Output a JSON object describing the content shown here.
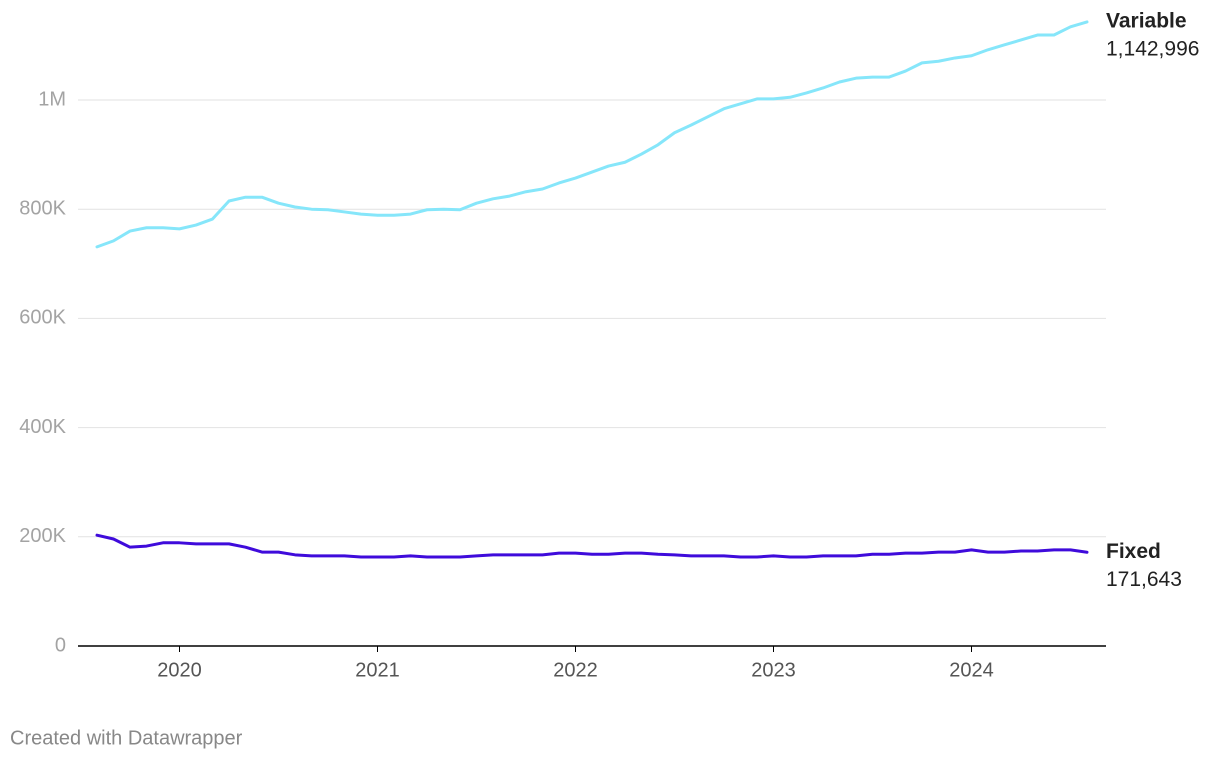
{
  "chart_data": {
    "type": "line",
    "credit": "Created with Datawrapper",
    "x": [
      "2019-08",
      "2019-09",
      "2019-10",
      "2019-11",
      "2019-12",
      "2020-01",
      "2020-02",
      "2020-03",
      "2020-04",
      "2020-05",
      "2020-06",
      "2020-07",
      "2020-08",
      "2020-09",
      "2020-10",
      "2020-11",
      "2020-12",
      "2021-01",
      "2021-02",
      "2021-03",
      "2021-04",
      "2021-05",
      "2021-06",
      "2021-07",
      "2021-08",
      "2021-09",
      "2021-10",
      "2021-11",
      "2021-12",
      "2022-01",
      "2022-02",
      "2022-03",
      "2022-04",
      "2022-05",
      "2022-06",
      "2022-07",
      "2022-08",
      "2022-09",
      "2022-10",
      "2022-11",
      "2022-12",
      "2023-01",
      "2023-02",
      "2023-03",
      "2023-04",
      "2023-05",
      "2023-06",
      "2023-07",
      "2023-08",
      "2023-09",
      "2023-10",
      "2023-11",
      "2023-12",
      "2024-01",
      "2024-02",
      "2024-03",
      "2024-04",
      "2024-05",
      "2024-06",
      "2024-07",
      "2024-08"
    ],
    "series": [
      {
        "name": "Variable",
        "color": "#86e6fa",
        "values": [
          731000,
          742000,
          760000,
          766000,
          766000,
          764000,
          771000,
          782000,
          815000,
          822000,
          822000,
          811000,
          804000,
          800000,
          799000,
          795000,
          791000,
          789000,
          789000,
          791000,
          799000,
          800000,
          799000,
          811000,
          819000,
          824000,
          832000,
          837000,
          848000,
          857000,
          868000,
          879000,
          886000,
          901000,
          918000,
          940000,
          954000,
          969000,
          984000,
          993000,
          1002000,
          1002000,
          1005000,
          1013000,
          1022000,
          1033000,
          1040000,
          1042000,
          1042000,
          1053000,
          1068000,
          1071000,
          1077000,
          1081000,
          1092000,
          1101000,
          1110000,
          1119000,
          1119000,
          1134000,
          1142996
        ],
        "value_labels": [
          null,
          null,
          null,
          null,
          null,
          null,
          null,
          null,
          null,
          null,
          null,
          null,
          null,
          null,
          null,
          null,
          null,
          null,
          null,
          null,
          null,
          null,
          null,
          null,
          null,
          null,
          null,
          null,
          null,
          null,
          null,
          null,
          null,
          null,
          null,
          null,
          null,
          null,
          null,
          null,
          null,
          null,
          null,
          null,
          null,
          null,
          null,
          null,
          null,
          null,
          null,
          null,
          null,
          null,
          null,
          null,
          null,
          null,
          null,
          null,
          "1,142,996"
        ]
      },
      {
        "name": "Fixed",
        "color": "#3f0bdb",
        "values": [
          203000,
          196000,
          181000,
          183000,
          189000,
          189000,
          187000,
          187000,
          187000,
          181000,
          172000,
          172000,
          167000,
          165000,
          165000,
          165000,
          163000,
          163000,
          163000,
          165000,
          163000,
          163000,
          163000,
          165000,
          167000,
          167000,
          167000,
          167000,
          170000,
          170000,
          168000,
          168000,
          170000,
          170000,
          168000,
          167000,
          165000,
          165000,
          165000,
          163000,
          163000,
          165000,
          163000,
          163000,
          165000,
          165000,
          165000,
          168000,
          168000,
          170000,
          170000,
          172000,
          172000,
          176000,
          172000,
          172000,
          174000,
          174000,
          176000,
          176000,
          171643
        ],
        "value_labels": [
          null,
          null,
          null,
          null,
          null,
          null,
          null,
          null,
          null,
          null,
          null,
          null,
          null,
          null,
          null,
          null,
          null,
          null,
          null,
          null,
          null,
          null,
          null,
          null,
          null,
          null,
          null,
          null,
          null,
          null,
          null,
          null,
          null,
          null,
          null,
          null,
          null,
          null,
          null,
          null,
          null,
          null,
          null,
          null,
          null,
          null,
          null,
          null,
          null,
          null,
          null,
          null,
          null,
          null,
          null,
          null,
          null,
          null,
          null,
          null,
          "171,643"
        ]
      }
    ],
    "xlim": [
      "2019-08",
      "2024-08"
    ],
    "xticks": [
      {
        "value": "2020-01",
        "label": "2020"
      },
      {
        "value": "2021-01",
        "label": "2021"
      },
      {
        "value": "2022-01",
        "label": "2022"
      },
      {
        "value": "2023-01",
        "label": "2023"
      },
      {
        "value": "2024-01",
        "label": "2024"
      }
    ],
    "ylim": [
      0,
      1150000
    ],
    "yticks": [
      0,
      {
        "value": 200000,
        "label": "200K"
      },
      {
        "value": 400000,
        "label": "400K"
      },
      {
        "value": 600000,
        "label": "600K"
      },
      {
        "value": 800000,
        "label": "800K"
      },
      {
        "value": 1000000,
        "label": "1M"
      }
    ],
    "grid": true
  }
}
